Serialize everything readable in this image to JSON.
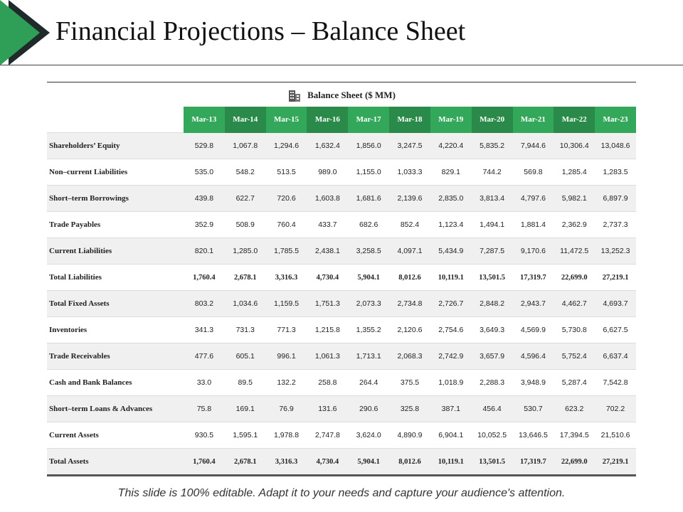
{
  "header": {
    "title": "Financial Projections – Balance Sheet"
  },
  "table": {
    "caption": "Balance Sheet ($ MM)",
    "columns": [
      "Mar-13",
      "Mar-14",
      "Mar-15",
      "Mar-16",
      "Mar-17",
      "Mar-18",
      "Mar-19",
      "Mar-20",
      "Mar-21",
      "Mar-22",
      "Mar-23"
    ],
    "rows": [
      {
        "label": "Shareholders’ Equity",
        "values": [
          "529.8",
          "1,067.8",
          "1,294.6",
          "1,632.4",
          "1,856.0",
          "3,247.5",
          "4,220.4",
          "5,835.2",
          "7,944.6",
          "10,306.4",
          "13,048.6"
        ]
      },
      {
        "label": "Non–current Liabilities",
        "values": [
          "535.0",
          "548.2",
          "513.5",
          "989.0",
          "1,155.0",
          "1,033.3",
          "829.1",
          "744.2",
          "569.8",
          "1,285.4",
          "1,283.5"
        ]
      },
      {
        "label": "Short–term Borrowings",
        "values": [
          "439.8",
          "622.7",
          "720.6",
          "1,603.8",
          "1,681.6",
          "2,139.6",
          "2,835.0",
          "3,813.4",
          "4,797.6",
          "5,982.1",
          "6,897.9"
        ]
      },
      {
        "label": "Trade Payables",
        "values": [
          "352.9",
          "508.9",
          "760.4",
          "433.7",
          "682.6",
          "852.4",
          "1,123.4",
          "1,494.1",
          "1,881.4",
          "2,362.9",
          "2,737.3"
        ]
      },
      {
        "label": "Current Liabilities",
        "values": [
          "820.1",
          "1,285.0",
          "1,785.5",
          "2,438.1",
          "3,258.5",
          "4,097.1",
          "5,434.9",
          "7,287.5",
          "9,170.6",
          "11,472.5",
          "13,252.3"
        ]
      },
      {
        "label": "Total Liabilities",
        "values": [
          "1,760.4",
          "2,678.1",
          "3,316.3",
          "4,730.4",
          "5,904.1",
          "8,012.6",
          "10,119.1",
          "13,501.5",
          "17,319.7",
          "22,699.0",
          "27,219.1"
        ]
      },
      {
        "label": "Total Fixed Assets",
        "values": [
          "803.2",
          "1,034.6",
          "1,159.5",
          "1,751.3",
          "2,073.3",
          "2,734.8",
          "2,726.7",
          "2,848.2",
          "2,943.7",
          "4,462.7",
          "4,693.7"
        ]
      },
      {
        "label": "Inventories",
        "values": [
          "341.3",
          "731.3",
          "771.3",
          "1,215.8",
          "1,355.2",
          "2,120.6",
          "2,754.6",
          "3,649.3",
          "4,569.9",
          "5,730.8",
          "6,627.5"
        ]
      },
      {
        "label": "Trade Receivables",
        "values": [
          "477.6",
          "605.1",
          "996.1",
          "1,061.3",
          "1,713.1",
          "2,068.3",
          "2,742.9",
          "3,657.9",
          "4,596.4",
          "5,752.4",
          "6,637.4"
        ]
      },
      {
        "label": "Cash and Bank Balances",
        "values": [
          "33.0",
          "89.5",
          "132.2",
          "258.8",
          "264.4",
          "375.5",
          "1,018.9",
          "2,288.3",
          "3,948.9",
          "5,287.4",
          "7,542.8"
        ]
      },
      {
        "label": "Short–term Loans & Advances",
        "values": [
          "75.8",
          "169.1",
          "76.9",
          "131.6",
          "290.6",
          "325.8",
          "387.1",
          "456.4",
          "530.7",
          "623.2",
          "702.2"
        ]
      },
      {
        "label": "Current Assets",
        "values": [
          "930.5",
          "1,595.1",
          "1,978.8",
          "2,747.8",
          "3,624.0",
          "4,890.9",
          "6,904.1",
          "10,052.5",
          "13,646.5",
          "17,394.5",
          "21,510.6"
        ]
      },
      {
        "label": "Total Assets",
        "values": [
          "1,760.4",
          "2,678.1",
          "3,316.3",
          "4,730.4",
          "5,904.1",
          "8,012.6",
          "10,119.1",
          "13,501.5",
          "17,319.7",
          "22,699.0",
          "27,219.1"
        ]
      }
    ]
  },
  "footer": {
    "note": "This slide is 100% editable. Adapt it to your needs and capture your audience's attention."
  }
}
